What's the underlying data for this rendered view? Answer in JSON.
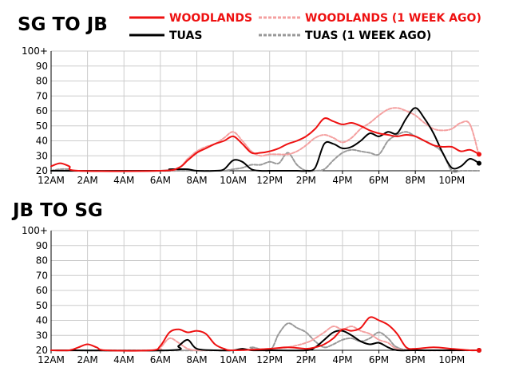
{
  "colors": {
    "woodlands": "#ee1111",
    "woodlands_prev": "#f4a0a0",
    "tuas": "#000000",
    "tuas_prev": "#999999",
    "axis": "#000000",
    "grid": "#cccccc",
    "text": "#000000"
  },
  "legend": [
    {
      "key": "woodlands",
      "label": "WOODLANDS",
      "style": "solid"
    },
    {
      "key": "woodlands_prev",
      "label": "WOODLANDS (1 WEEK AGO)",
      "style": "dashed"
    },
    {
      "key": "tuas",
      "label": "TUAS",
      "style": "solid"
    },
    {
      "key": "tuas_prev",
      "label": "TUAS (1 WEEK AGO)",
      "style": "dashed"
    }
  ],
  "chart_data": [
    {
      "type": "line",
      "title": "SG TO JB",
      "xlabel": "",
      "ylabel": "",
      "ylim": [
        20,
        100
      ],
      "xlim": [
        0,
        23.5
      ],
      "yticks": [
        "20",
        "30",
        "40",
        "50",
        "60",
        "70",
        "80",
        "90",
        "100+"
      ],
      "xticks": [
        "12AM",
        "2AM",
        "4AM",
        "6AM",
        "8AM",
        "10AM",
        "12PM",
        "2PM",
        "4PM",
        "6PM",
        "8PM",
        "10PM"
      ],
      "grid": true,
      "series": [
        {
          "key": "woodlands",
          "name": "WOODLANDS",
          "x": [
            0,
            0.5,
            1,
            1.5,
            6,
            7,
            7.5,
            8,
            8.5,
            9,
            9.5,
            10,
            10.5,
            11,
            11.5,
            12,
            12.5,
            13,
            13.5,
            14,
            14.5,
            15,
            15.5,
            16,
            16.5,
            17,
            17.5,
            18,
            18.5,
            19,
            19.5,
            20,
            20.5,
            21,
            21.5,
            22,
            22.5,
            23,
            23.5
          ],
          "values": [
            23,
            25,
            23,
            20,
            20,
            22,
            27,
            32,
            35,
            38,
            40,
            43,
            38,
            32,
            32,
            33,
            35,
            38,
            40,
            43,
            48,
            55,
            53,
            51,
            52,
            50,
            47,
            45,
            44,
            43,
            44,
            43,
            40,
            37,
            36,
            36,
            33,
            34,
            31
          ]
        },
        {
          "key": "woodlands_prev",
          "name": "WOODLANDS (1 WEEK AGO)",
          "x": [
            0,
            6,
            7,
            7.5,
            8,
            8.5,
            9,
            9.5,
            10,
            10.5,
            11,
            11.5,
            12,
            12.5,
            13,
            13.5,
            14,
            14.5,
            15,
            15.5,
            16,
            16.5,
            17,
            17.5,
            18,
            18.5,
            19,
            19.5,
            20,
            20.5,
            21,
            21.5,
            22,
            22.5,
            23,
            23.5
          ],
          "values": [
            20,
            20,
            22,
            28,
            33,
            36,
            38,
            42,
            46,
            40,
            33,
            30,
            31,
            31,
            31,
            33,
            37,
            42,
            44,
            42,
            39,
            42,
            48,
            52,
            57,
            61,
            62,
            60,
            57,
            52,
            48,
            47,
            48,
            52,
            51,
            30
          ]
        },
        {
          "key": "tuas",
          "name": "TUAS",
          "x": [
            0,
            6,
            6.5,
            7,
            7.5,
            8,
            9,
            9.5,
            10,
            10.5,
            11,
            11.5,
            12,
            12.5,
            13,
            13.5,
            14,
            14.5,
            15,
            15.5,
            16,
            16.5,
            17,
            17.5,
            18,
            18.5,
            19,
            19.5,
            20,
            20.5,
            21,
            21.5,
            22,
            22.5,
            23,
            23.5
          ],
          "values": [
            20,
            20,
            21,
            21,
            21,
            20,
            20,
            21,
            27,
            26,
            21,
            20,
            20,
            20,
            20,
            20,
            20,
            22,
            38,
            38,
            35,
            36,
            40,
            45,
            43,
            46,
            45,
            55,
            62,
            55,
            45,
            32,
            22,
            23,
            28,
            25
          ]
        },
        {
          "key": "tuas_prev",
          "name": "TUAS (1 WEEK AGO)",
          "x": [
            0,
            0.5,
            1,
            1.5,
            9,
            9.5,
            10,
            10.5,
            11,
            11.5,
            12,
            12.5,
            13,
            13.5,
            14,
            14.5,
            15,
            15.5,
            16,
            16.5,
            17,
            17.5,
            18,
            18.5,
            19,
            19.5,
            20,
            20.5,
            21,
            21.5,
            22,
            22.5,
            23,
            23.5
          ],
          "values": [
            20,
            21,
            21,
            20,
            20,
            20,
            21,
            22,
            24,
            24,
            26,
            25,
            32,
            24,
            20,
            20,
            21,
            27,
            32,
            34,
            33,
            32,
            31,
            40,
            44,
            46,
            43,
            40,
            37,
            32,
            20,
            20,
            20,
            20
          ]
        }
      ]
    },
    {
      "type": "line",
      "title": "JB TO SG",
      "xlabel": "",
      "ylabel": "",
      "ylim": [
        20,
        100
      ],
      "xlim": [
        0,
        23.5
      ],
      "yticks": [
        "20",
        "30",
        "40",
        "50",
        "60",
        "70",
        "80",
        "90",
        "100+"
      ],
      "xticks": [
        "12AM",
        "2AM",
        "4AM",
        "6AM",
        "8AM",
        "10AM",
        "12PM",
        "2PM",
        "4PM",
        "6PM",
        "8PM",
        "10PM"
      ],
      "grid": true,
      "series": [
        {
          "key": "woodlands",
          "name": "WOODLANDS",
          "x": [
            0,
            1,
            1.5,
            2,
            2.5,
            3,
            5.5,
            6,
            6.5,
            7,
            7.5,
            8,
            8.5,
            9,
            9.5,
            10,
            12,
            13,
            14,
            14.5,
            15,
            15.5,
            16,
            16.5,
            17,
            17.5,
            18,
            18.5,
            19,
            19.5,
            20,
            21,
            22,
            23,
            23.5
          ],
          "values": [
            20,
            20,
            22,
            24,
            22,
            20,
            20,
            23,
            32,
            34,
            32,
            33,
            31,
            24,
            21,
            20,
            21,
            22,
            21,
            22,
            24,
            28,
            34,
            33,
            35,
            42,
            40,
            37,
            31,
            22,
            21,
            22,
            21,
            20,
            20
          ]
        },
        {
          "key": "woodlands_prev",
          "name": "WOODLANDS (1 WEEK AGO)",
          "x": [
            0,
            5.5,
            6,
            6.5,
            7,
            7.5,
            8,
            8.5,
            9,
            9.5,
            10,
            12,
            13,
            14,
            14.5,
            15,
            15.5,
            16,
            16.5,
            17,
            17.5,
            18,
            18.5,
            19,
            20,
            23.5
          ],
          "values": [
            20,
            20,
            22,
            28,
            25,
            21,
            20,
            20,
            20,
            20,
            20,
            21,
            22,
            25,
            28,
            32,
            36,
            34,
            36,
            33,
            31,
            27,
            25,
            21,
            20,
            20
          ]
        },
        {
          "key": "tuas",
          "name": "TUAS",
          "x": [
            0,
            6.5,
            7,
            7.5,
            8,
            9,
            10,
            10.5,
            11,
            12,
            14,
            14.5,
            15,
            15.5,
            16,
            16.5,
            17,
            17.5,
            18,
            18.5,
            19,
            20,
            23.5
          ],
          "values": [
            20,
            20,
            23,
            27,
            21,
            20,
            20,
            21,
            20,
            20,
            20,
            22,
            27,
            32,
            33,
            30,
            26,
            24,
            25,
            22,
            20,
            20,
            20
          ]
        },
        {
          "key": "tuas_prev",
          "name": "TUAS (1 WEEK AGO)",
          "x": [
            0,
            10,
            11,
            12,
            12.5,
            13,
            13.5,
            14,
            14.5,
            15,
            15.5,
            16,
            16.5,
            17,
            17.5,
            18,
            18.5,
            19,
            20,
            23.5
          ],
          "values": [
            20,
            20,
            22,
            20,
            31,
            38,
            35,
            32,
            26,
            22,
            24,
            27,
            28,
            26,
            28,
            32,
            28,
            22,
            20,
            20
          ]
        }
      ]
    }
  ]
}
